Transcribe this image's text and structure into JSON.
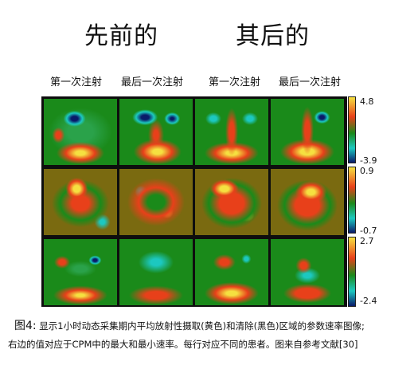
{
  "titles": {
    "before": "先前的",
    "after": "其后的"
  },
  "columns": [
    "第一次注射",
    "最后一次注射",
    "第一次注射",
    "最后一次注射"
  ],
  "scales": [
    {
      "max": "4.8",
      "min": "-3.9"
    },
    {
      "max": "0.9",
      "min": "-0.7"
    },
    {
      "max": "2.7",
      "min": "-2.4"
    }
  ],
  "caption": {
    "figure": "图4:",
    "line1": "显示1小时动态采集期内平均放射性摄取(黄色)和清除(黑色)区域的参数速率图像;",
    "line2": "右边的值对应于CPM中的最大和最小速率。每行对应不同的患者。图来自参考文献[30]"
  },
  "colors": {
    "high": "#f5e040",
    "mid_high": "#e8401a",
    "mid": "#1a8a1a",
    "mid_low": "#1cc8c0",
    "low": "#0a1a6a",
    "olive_bg": "#7a6a10"
  }
}
